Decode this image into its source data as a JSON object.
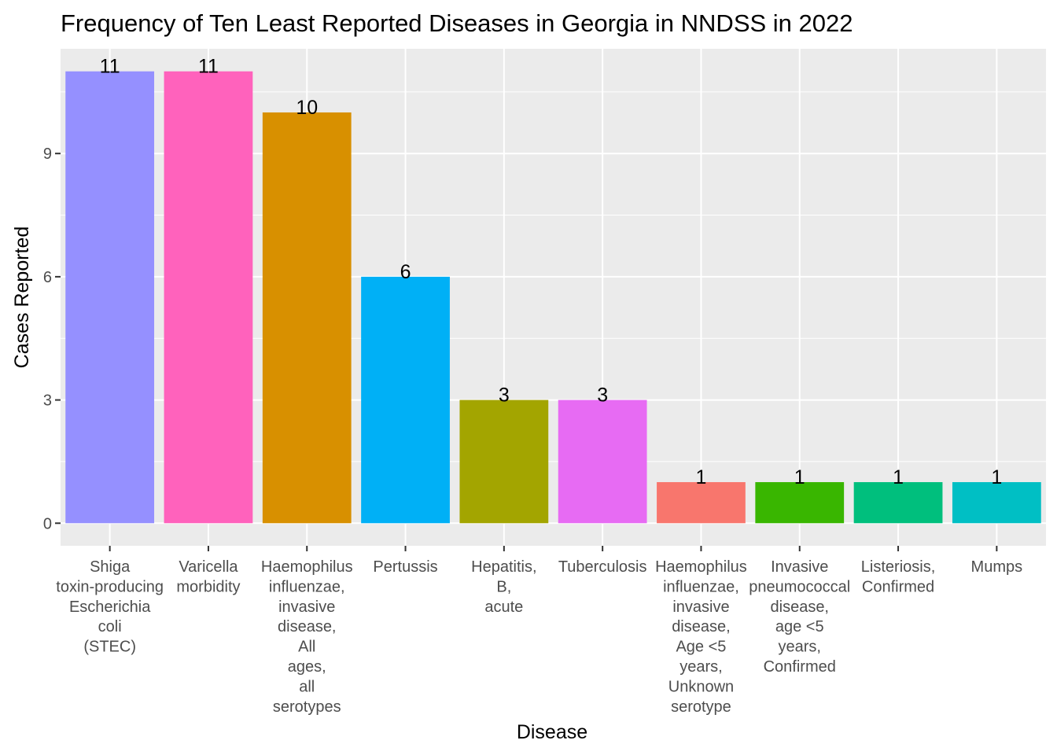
{
  "chart_data": {
    "type": "bar",
    "title": "Frequency of Ten Least Reported Diseases in Georgia in NNDSS in 2022",
    "xlabel": "Disease",
    "ylabel": "Cases Reported",
    "ylim": [
      -0.55,
      11.55
    ],
    "yticks": [
      0,
      3,
      6,
      9
    ],
    "ytick_labels": [
      "0",
      "3",
      "6",
      "9"
    ],
    "grid": true,
    "legend": "none",
    "panel_background": "#ebebeb",
    "grid_color": "#ffffff",
    "categories": [
      [
        "Shiga",
        "toxin-producing",
        "Escherichia",
        "coli",
        "(STEC)"
      ],
      [
        "Varicella",
        "morbidity"
      ],
      [
        "Haemophilus",
        "influenzae,",
        "invasive",
        "disease,",
        "All",
        "ages,",
        "all",
        "serotypes"
      ],
      [
        "Pertussis"
      ],
      [
        "Hepatitis,",
        "B,",
        "acute"
      ],
      [
        "Tuberculosis"
      ],
      [
        "Haemophilus",
        "influenzae,",
        "invasive",
        "disease,",
        "Age <5",
        "years,",
        "Unknown",
        "serotype"
      ],
      [
        "Invasive",
        "pneumococcal",
        "disease,",
        "age <5",
        "years,",
        "Confirmed"
      ],
      [
        "Listeriosis,",
        "Confirmed"
      ],
      [
        "Mumps"
      ]
    ],
    "values": [
      11,
      11,
      10,
      6,
      3,
      3,
      1,
      1,
      1,
      1
    ],
    "value_labels": [
      "11",
      "11",
      "10",
      "6",
      "3",
      "3",
      "1",
      "1",
      "1",
      "1"
    ],
    "colors": [
      "#9590FF",
      "#FF62BC",
      "#D89000",
      "#00B0F6",
      "#A3A500",
      "#E76BF3",
      "#F8766D",
      "#39B600",
      "#00BF7D",
      "#00BFC4"
    ]
  }
}
